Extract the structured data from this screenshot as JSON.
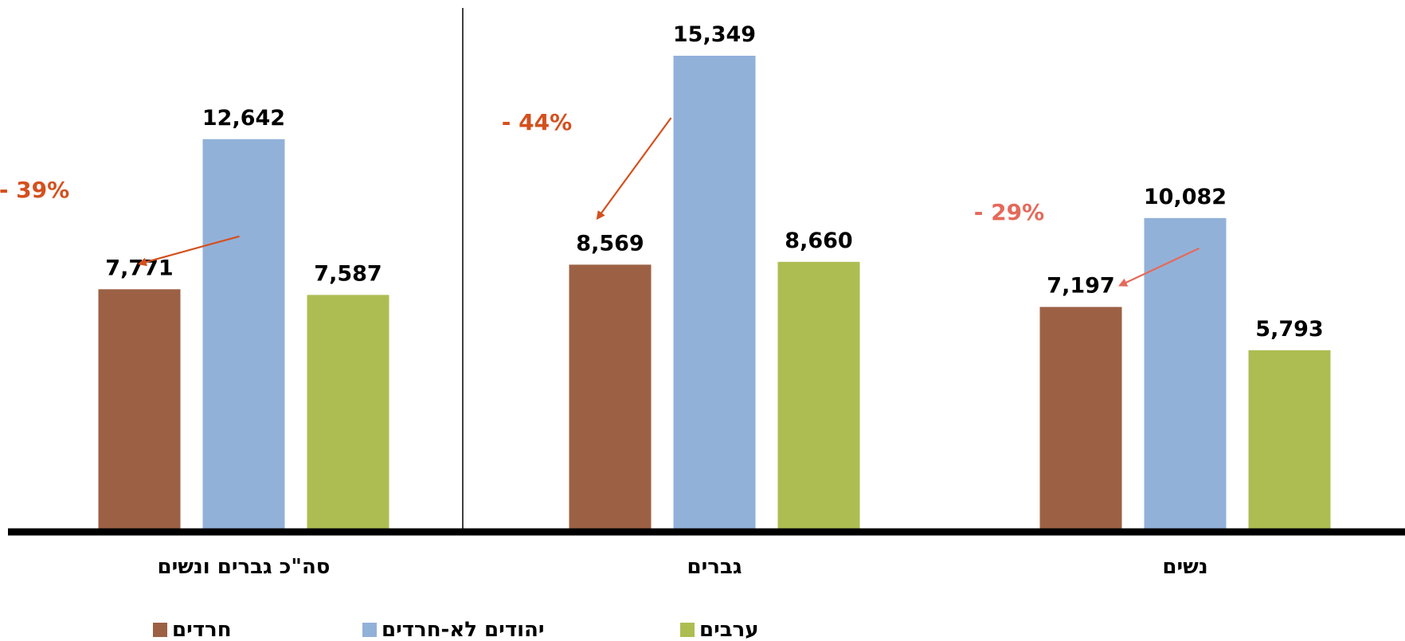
{
  "chart_data": {
    "type": "bar",
    "title": "",
    "xlabel": "",
    "ylabel": "",
    "ylim": [
      0,
      16000
    ],
    "grid": false,
    "legend_position": "bottom",
    "categories": [
      "סה\"כ גברים ונשים",
      "גברים",
      "נשים"
    ],
    "series": [
      {
        "name": "חרדים",
        "color": "#9C6144",
        "values": [
          7771,
          8569,
          7197
        ],
        "labels": [
          "7,771",
          "8,569",
          "7,197"
        ]
      },
      {
        "name": "יהודים לא-חרדים",
        "color": "#92B1D9",
        "values": [
          12642,
          15349,
          10082
        ],
        "labels": [
          "12,642",
          "15,349",
          "10,082"
        ]
      },
      {
        "name": "ערבים",
        "color": "#AEBD52",
        "values": [
          7587,
          8660,
          5793
        ],
        "labels": [
          "7,587",
          "8,660",
          "5,793"
        ]
      }
    ],
    "annotations": [
      {
        "category_index": 0,
        "text": "- 39%",
        "color": "#D4501E"
      },
      {
        "category_index": 1,
        "text": "- 44%",
        "color": "#D4501E"
      },
      {
        "category_index": 2,
        "text": "- 29%",
        "color": "#E46A5A"
      }
    ]
  }
}
